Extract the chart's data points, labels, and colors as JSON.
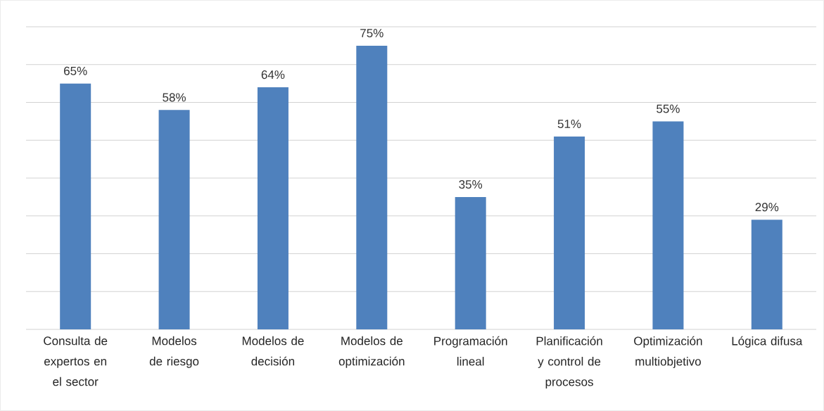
{
  "chart_data": {
    "type": "bar",
    "categories": [
      "Consulta de expertos en el sector",
      "Modelos de riesgo",
      "Modelos de decisión",
      "Modelos de optimización",
      "Programación lineal",
      "Planificación y control de procesos",
      "Optimización multiobjetivo",
      "Lógica difusa"
    ],
    "values": [
      65,
      58,
      64,
      75,
      35,
      51,
      55,
      29
    ],
    "value_labels": [
      "65%",
      "58%",
      "64%",
      "75%",
      "35%",
      "51%",
      "55%",
      "29%"
    ],
    "color": "#4f81bd",
    "ylim": [
      0,
      80
    ],
    "yticks": [
      {
        "value": 0,
        "label": null
      },
      {
        "value": 10,
        "label": null
      },
      {
        "value": 20,
        "label": null
      },
      {
        "value": 30,
        "label": null
      },
      {
        "value": 40,
        "label": null
      },
      {
        "value": 50,
        "label": null
      },
      {
        "value": 60,
        "label": null
      },
      {
        "value": 70,
        "label": null
      },
      {
        "value": 80,
        "label": null
      }
    ],
    "grid": "y",
    "tick_labels": "x"
  }
}
